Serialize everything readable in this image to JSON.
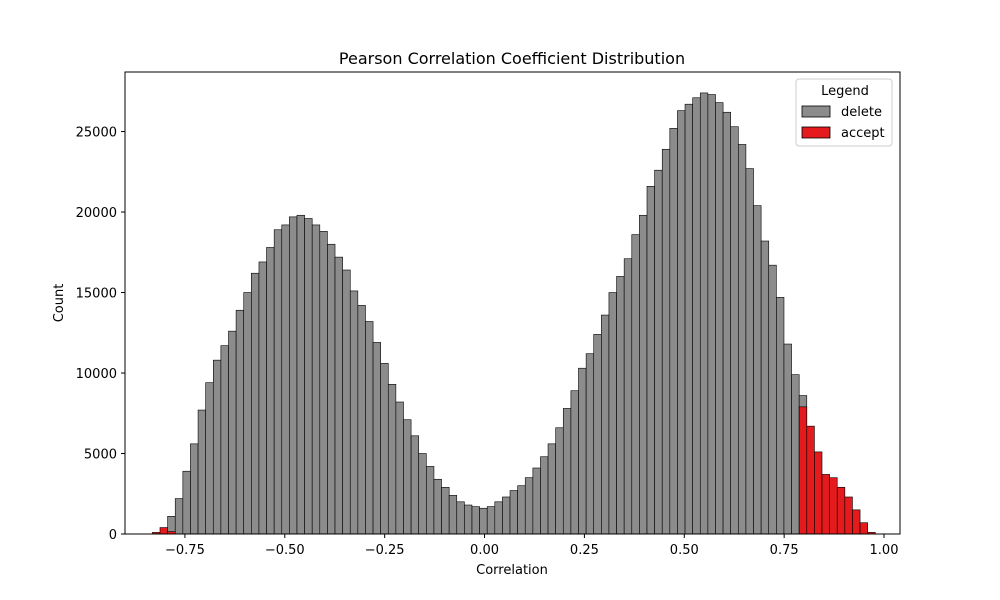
{
  "chart_data": {
    "type": "bar",
    "title": "Pearson Correlation Coefficient Distribution",
    "xlabel": "Correlation",
    "ylabel": "Count",
    "xlim": [
      -0.9,
      1.04
    ],
    "ylim": [
      0,
      28700
    ],
    "grid": false,
    "bin_width": 0.01905,
    "x_ticks": [
      -0.75,
      -0.5,
      -0.25,
      0.0,
      0.25,
      0.5,
      0.75,
      1.0
    ],
    "x_tick_labels": [
      "−0.75",
      "−0.50",
      "−0.25",
      "0.00",
      "0.25",
      "0.50",
      "0.75",
      "1.00"
    ],
    "y_ticks": [
      0,
      5000,
      10000,
      15000,
      20000,
      25000
    ],
    "y_tick_labels": [
      "0",
      "5000",
      "10000",
      "15000",
      "20000",
      "25000"
    ],
    "legend": {
      "title": "Legend",
      "placement": "top-right",
      "entries": [
        {
          "name": "delete",
          "color": "#8c8c8c"
        },
        {
          "name": "accept",
          "color": "#e41a1c"
        }
      ]
    },
    "series": [
      {
        "name": "delete",
        "color": "#8c8c8c",
        "bin_starts": [
          -0.7933,
          -0.7743,
          -0.7552,
          -0.7362,
          -0.7171,
          -0.6981,
          -0.679,
          -0.66,
          -0.6409,
          -0.6219,
          -0.6028,
          -0.5838,
          -0.5647,
          -0.5457,
          -0.5266,
          -0.5076,
          -0.4886,
          -0.4695,
          -0.4505,
          -0.4314,
          -0.4124,
          -0.3933,
          -0.3743,
          -0.3552,
          -0.3362,
          -0.3171,
          -0.2981,
          -0.279,
          -0.26,
          -0.241,
          -0.2219,
          -0.2029,
          -0.1838,
          -0.1648,
          -0.1457,
          -0.1267,
          -0.1076,
          -0.0886,
          -0.0695,
          -0.0505,
          -0.0314,
          -0.0124,
          0.0067,
          0.0257,
          0.0448,
          0.0638,
          0.0829,
          0.1019,
          0.121,
          0.14,
          0.159,
          0.1781,
          0.1971,
          0.2162,
          0.2352,
          0.2543,
          0.2733,
          0.2924,
          0.3114,
          0.3305,
          0.3495,
          0.3686,
          0.3876,
          0.4067,
          0.4257,
          0.4448,
          0.4638,
          0.4829,
          0.5019,
          0.521,
          0.54,
          0.5591,
          0.5781,
          0.5971,
          0.6162,
          0.6352,
          0.6543,
          0.6733,
          0.6924,
          0.7114,
          0.7305,
          0.7495,
          0.7686,
          0.7876
        ],
        "values": [
          1100,
          2200,
          3900,
          5600,
          7700,
          9400,
          10800,
          11700,
          12600,
          13900,
          15000,
          16200,
          16900,
          17800,
          18900,
          19200,
          19700,
          19800,
          19600,
          19200,
          18800,
          18000,
          17200,
          16400,
          15100,
          14200,
          13200,
          11900,
          10600,
          9300,
          8200,
          7100,
          6100,
          5000,
          4200,
          3400,
          2900,
          2400,
          2000,
          1800,
          1700,
          1600,
          1700,
          2000,
          2300,
          2700,
          3000,
          3500,
          4100,
          4800,
          5600,
          6600,
          7800,
          8900,
          10300,
          11200,
          12400,
          13600,
          15000,
          16000,
          17100,
          18600,
          19800,
          21600,
          22600,
          23900,
          25200,
          26300,
          26700,
          27100,
          27400,
          27300,
          26800,
          26200,
          25300,
          24200,
          22700,
          20400,
          18200,
          16700,
          14700,
          11800,
          9900,
          8600
        ]
      },
      {
        "name": "accept",
        "color": "#e41a1c",
        "bin_starts": [
          -0.8314,
          -0.8124,
          -0.7933,
          0.7876,
          0.8067,
          0.8257,
          0.8448,
          0.8638,
          0.8829,
          0.9019,
          0.921,
          0.94,
          0.9591
        ],
        "values": [
          100,
          400,
          150,
          7900,
          6700,
          5100,
          3700,
          3500,
          2900,
          2300,
          1500,
          700,
          100
        ]
      }
    ]
  }
}
